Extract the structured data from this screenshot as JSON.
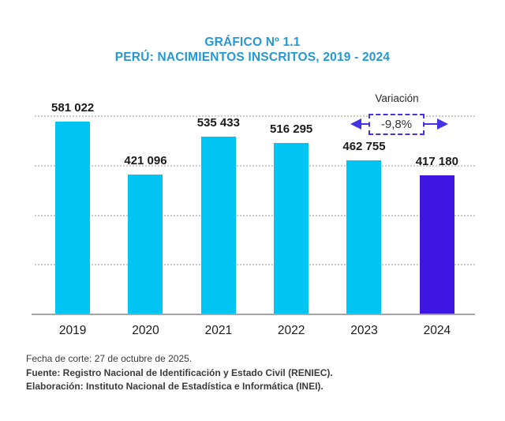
{
  "title": {
    "line1": "GRÁFICO Nº 1.1",
    "line2": "PERÚ: NACIMIENTOS INSCRITOS, 2019 - 2024"
  },
  "chart_data": {
    "type": "bar",
    "title": "PERÚ: NACIMIENTOS INSCRITOS, 2019 - 2024",
    "categories": [
      "2019",
      "2020",
      "2021",
      "2022",
      "2023",
      "2024"
    ],
    "values": [
      581022,
      421096,
      535433,
      516295,
      462755,
      417180
    ],
    "value_labels": [
      "581 022",
      "421 096",
      "535 433",
      "516 295",
      "462 755",
      "417 180"
    ],
    "xlabel": "",
    "ylabel": "",
    "ylim": [
      0,
      600000
    ],
    "gridline_step": 150000,
    "grid": true,
    "legend": false,
    "highlight_last_bar": true
  },
  "annotation": {
    "title": "Variación",
    "value": "-9,8%"
  },
  "colors": {
    "title_blue": "#2598d3",
    "bar_default": "#00c4f1",
    "bar_highlight": "#3d16e4",
    "annotation_purple": "#4532e2",
    "gridline": "#cccccc",
    "axis_line": "#a5a5a5",
    "label_text": "#1a1a1a",
    "footer_text": "#3a3a3a"
  },
  "footer": {
    "line1": "Fecha de corte: 27 de octubre de 2025.",
    "line2": "Fuente: Registro Nacional de Identificación y Estado Civil (RENIEC).",
    "line3": "Elaboración: Instituto Nacional de Estadística e Informática (INEI)."
  }
}
